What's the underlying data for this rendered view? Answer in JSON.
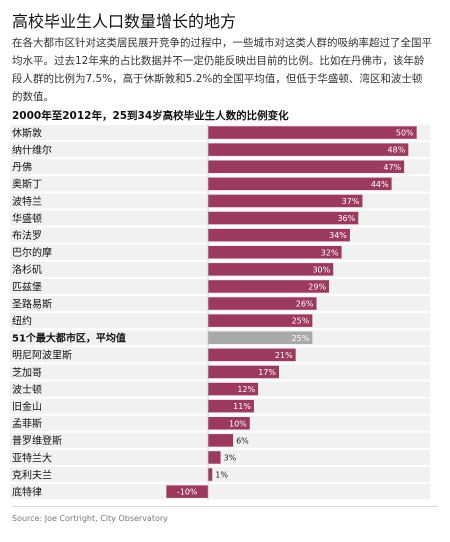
{
  "header": {
    "title": "高校毕业生人口数量增长的地方",
    "description": "在各大都市区针对这类居民展开竞争的过程中，一些城市对这类人群的吸纳率超过了全国平均水平。过去12年来的占比数据并不一定仍能反映出目前的比例。比如在丹佛市，该年龄段人群的比例为7.5%，高于休斯敦和5.2%的全国平均值，但低于华盛顿、湾区和波士顿的数值。"
  },
  "chart_data": {
    "type": "bar",
    "orientation": "horizontal",
    "title": "2000年至2012年，25到34岁高校毕业生人数的比例变化",
    "categories": [
      "休斯敦",
      "纳什维尔",
      "丹佛",
      "奥斯丁",
      "波特兰",
      "华盛顿",
      "布法罗",
      "巴尔的摩",
      "洛杉矶",
      "匹兹堡",
      "圣路易斯",
      "纽约",
      "51个最大都市区，平均值",
      "明尼阿波里斯",
      "芝加哥",
      "波士顿",
      "旧金山",
      "孟菲斯",
      "普罗维登斯",
      "亚特兰大",
      "克利夫兰",
      "底特律"
    ],
    "values": [
      50,
      48,
      47,
      44,
      37,
      36,
      34,
      32,
      30,
      29,
      26,
      25,
      25,
      21,
      17,
      12,
      11,
      10,
      6,
      3,
      1,
      -10
    ],
    "value_labels": [
      "50%",
      "48%",
      "47%",
      "44%",
      "37%",
      "36%",
      "34%",
      "32%",
      "30%",
      "29%",
      "26%",
      "25%",
      "25%",
      "21%",
      "17%",
      "12%",
      "11%",
      "10%",
      "6%",
      "3%",
      "1%",
      "-10%"
    ],
    "highlight_category": "51个最大都市区，平均值",
    "xlim": [
      -12,
      52
    ],
    "colors": {
      "bar": "#9b3a5e",
      "highlight": "#a9a9a9",
      "row_bg": "#f1f1f1"
    },
    "grid": false,
    "legend": "none"
  },
  "footer": {
    "source": "Source: Joe Cortright, City Observatory"
  }
}
